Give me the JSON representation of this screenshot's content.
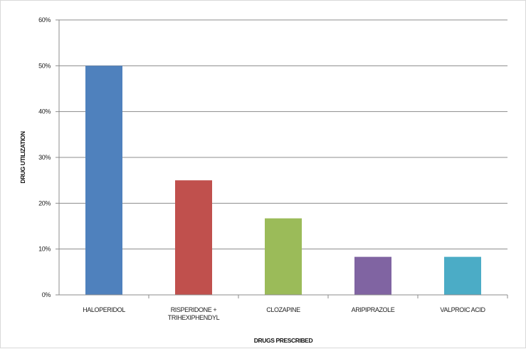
{
  "chart_data": {
    "type": "bar",
    "categories": [
      "HALOPERIDOL",
      "RISPERIDONE + TRIHEXIPHENDYL",
      "CLOZAPINE",
      "ARIPIPRAZOLE",
      "VALPROIC ACID"
    ],
    "category_lines": [
      [
        "HALOPERIDOL"
      ],
      [
        "RISPERIDONE +",
        "TRIHEXIPHENDYL"
      ],
      [
        "CLOZAPINE"
      ],
      [
        "ARIPIPRAZOLE"
      ],
      [
        "VALPROIC ACID"
      ]
    ],
    "values": [
      50,
      25,
      16.7,
      8.3,
      8.3
    ],
    "colors": [
      "#4f81bd",
      "#c0504d",
      "#9bbb59",
      "#8064a2",
      "#4bacc6"
    ],
    "ylim": [
      0,
      60
    ],
    "yticks": [
      0,
      10,
      20,
      30,
      40,
      50,
      60
    ],
    "ytick_labels": [
      "0%",
      "10%",
      "20%",
      "30%",
      "40%",
      "50%",
      "60%"
    ],
    "xlabel": "DRUGS PRESCRIBED",
    "ylabel": "DRUG UTILIZATION",
    "grid": true,
    "legend": "none"
  }
}
